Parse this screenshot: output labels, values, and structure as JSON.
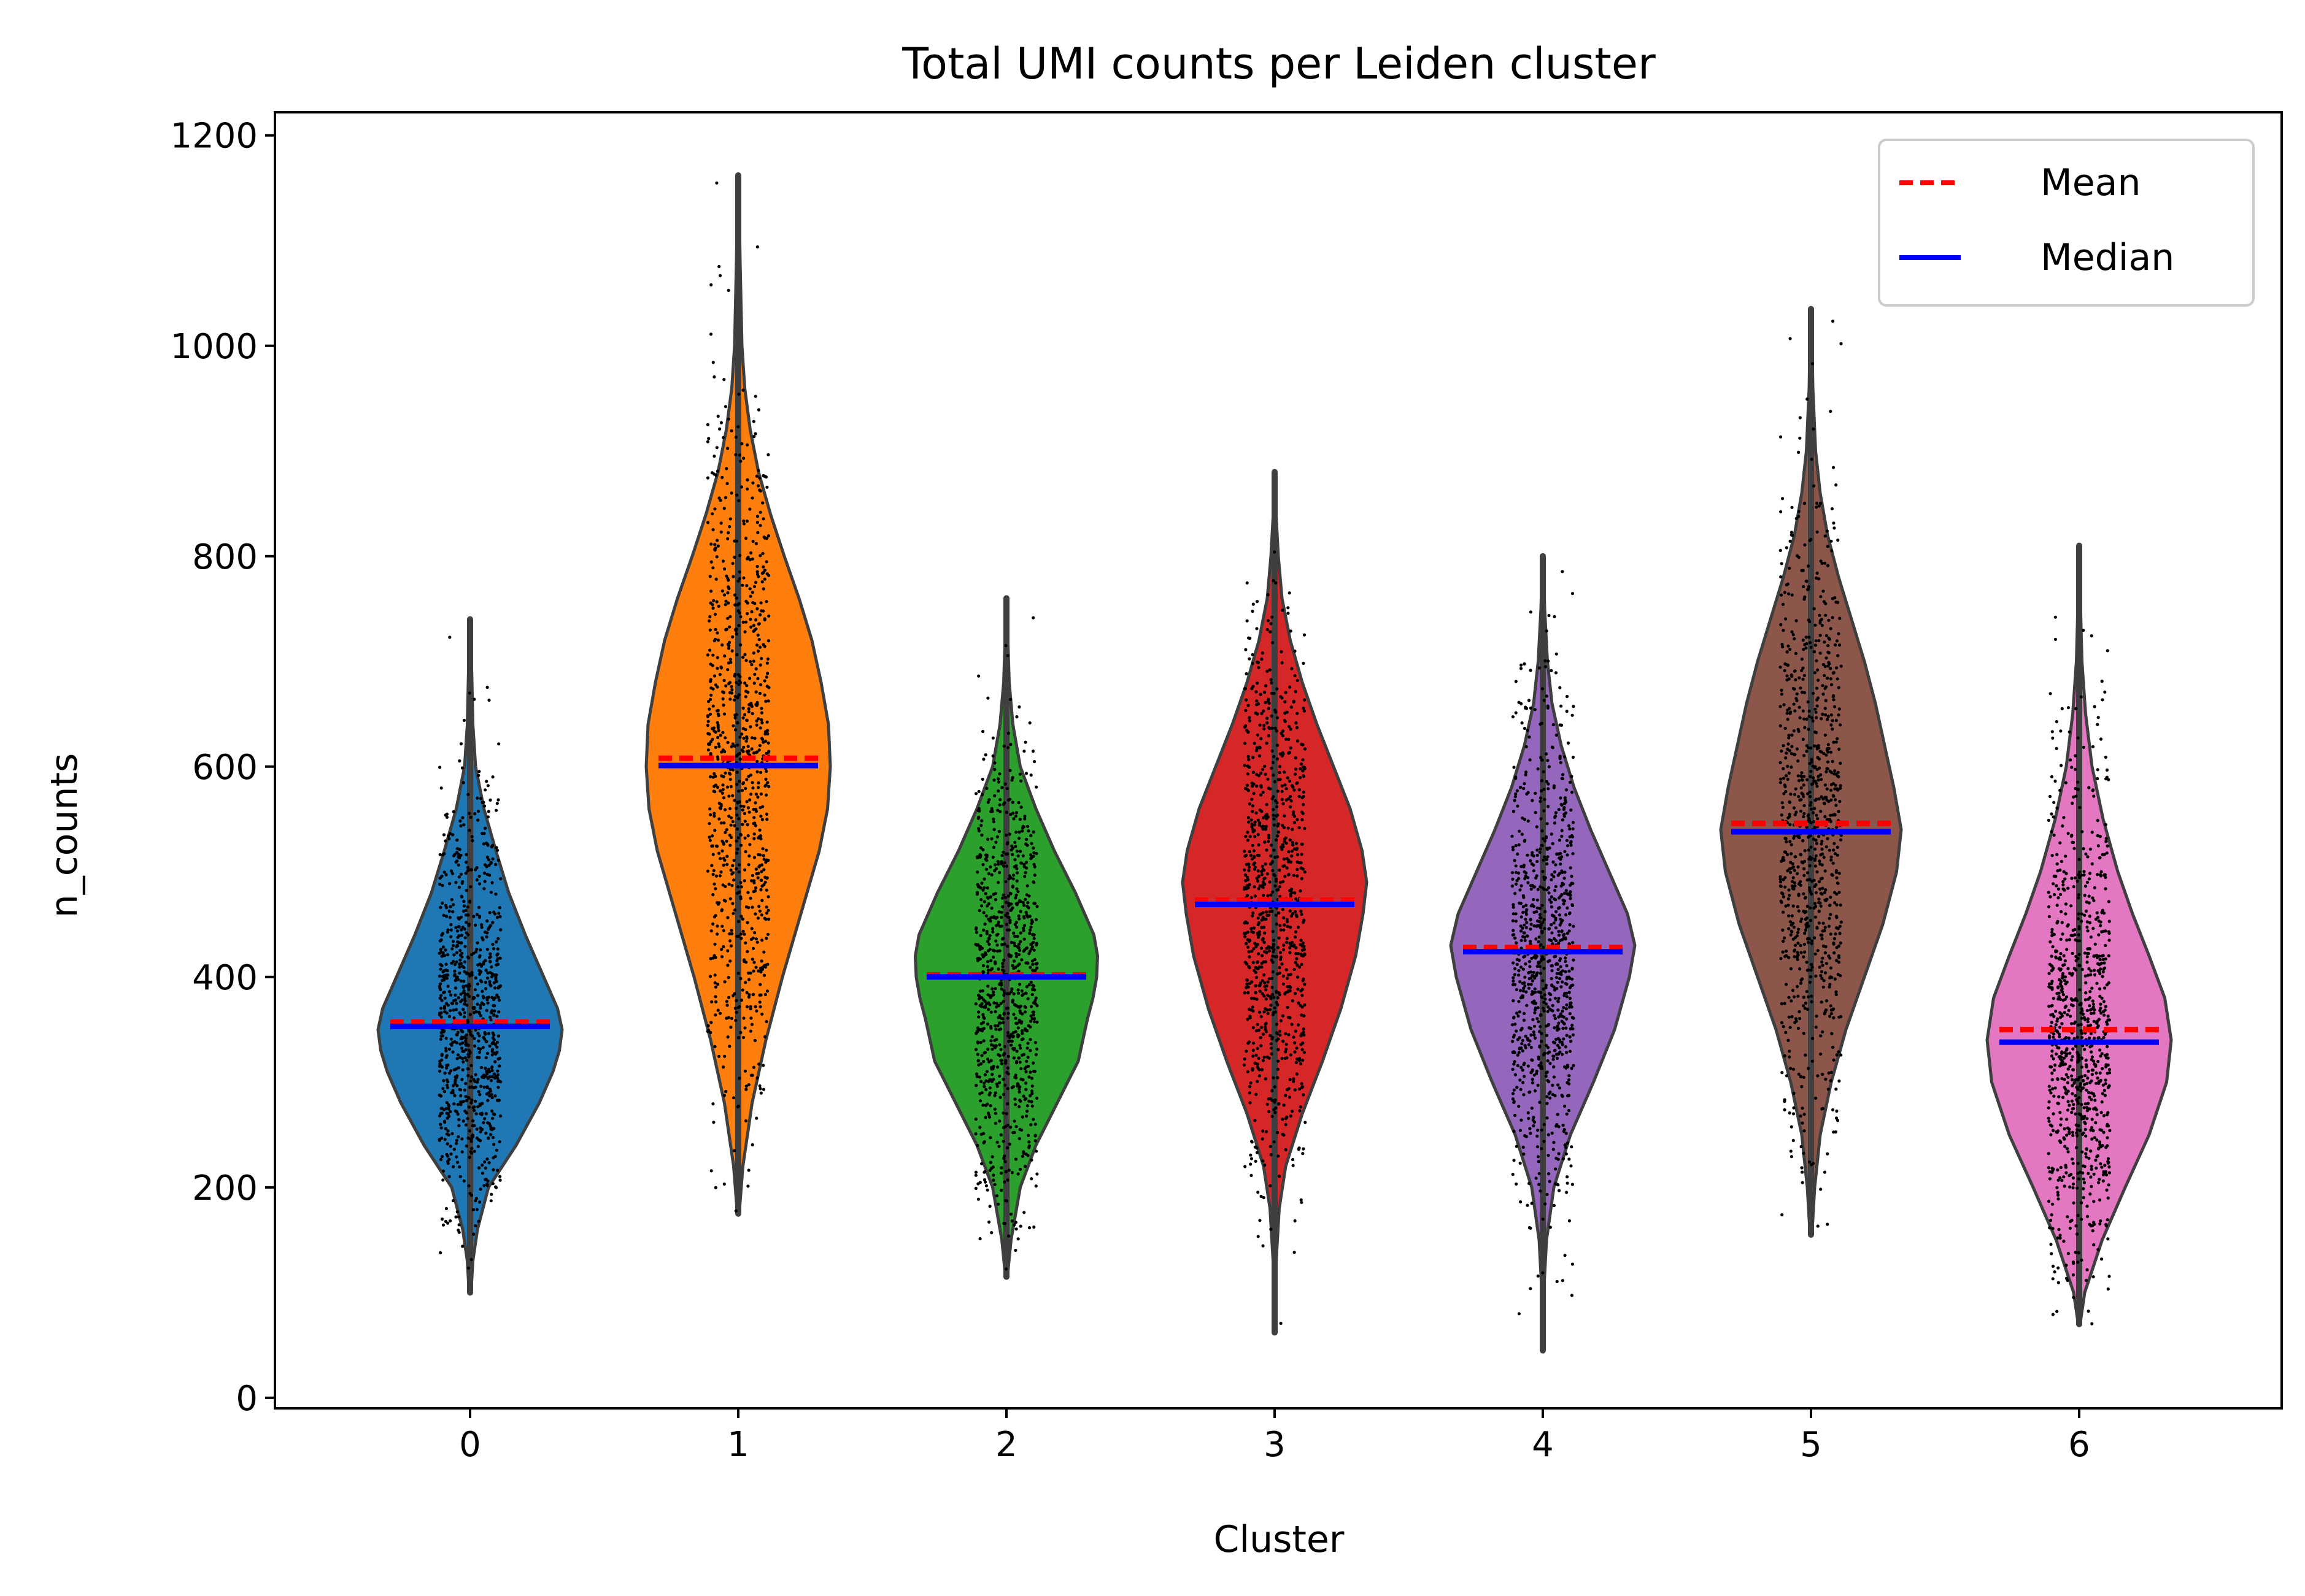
{
  "chart_data": {
    "type": "violin",
    "title": "Total UMI counts per Leiden cluster",
    "xlabel": "Cluster",
    "ylabel": "n_counts",
    "categories": [
      "0",
      "1",
      "2",
      "3",
      "4",
      "5",
      "6"
    ],
    "yticks": [
      "0",
      "200",
      "400",
      "600",
      "800",
      "1000",
      "1200"
    ],
    "ylim": [
      -10,
      1222
    ],
    "colors": [
      "#1f77b4",
      "#ff7f0e",
      "#2ca02c",
      "#d62728",
      "#9467bd",
      "#8c564b",
      "#e377c2"
    ],
    "mean_color": "#ff0000",
    "median_color": "#0000ff",
    "legend": {
      "position": "top-right",
      "mean_label": "Mean",
      "median_label": "Median"
    },
    "grid": false,
    "violins": [
      {
        "cluster": "0",
        "min": 100,
        "max": 740,
        "mean": 357,
        "median": 353,
        "profile": [
          [
            100,
            0.01
          ],
          [
            130,
            0.03
          ],
          [
            160,
            0.08
          ],
          [
            200,
            0.2
          ],
          [
            240,
            0.5
          ],
          [
            280,
            0.75
          ],
          [
            310,
            0.9
          ],
          [
            330,
            0.97
          ],
          [
            350,
            1.0
          ],
          [
            370,
            0.95
          ],
          [
            400,
            0.8
          ],
          [
            440,
            0.6
          ],
          [
            480,
            0.42
          ],
          [
            520,
            0.28
          ],
          [
            560,
            0.15
          ],
          [
            600,
            0.06
          ],
          [
            640,
            0.03
          ],
          [
            700,
            0.015
          ],
          [
            740,
            0.005
          ]
        ]
      },
      {
        "cluster": "1",
        "min": 175,
        "max": 1162,
        "mean": 608,
        "median": 601,
        "profile": [
          [
            175,
            0.01
          ],
          [
            220,
            0.05
          ],
          [
            280,
            0.15
          ],
          [
            340,
            0.3
          ],
          [
            400,
            0.48
          ],
          [
            460,
            0.68
          ],
          [
            520,
            0.88
          ],
          [
            560,
            0.97
          ],
          [
            600,
            1.0
          ],
          [
            640,
            0.98
          ],
          [
            680,
            0.9
          ],
          [
            720,
            0.8
          ],
          [
            760,
            0.66
          ],
          [
            800,
            0.5
          ],
          [
            840,
            0.35
          ],
          [
            880,
            0.22
          ],
          [
            920,
            0.13
          ],
          [
            960,
            0.07
          ],
          [
            1000,
            0.04
          ],
          [
            1080,
            0.02
          ],
          [
            1162,
            0.005
          ]
        ]
      },
      {
        "cluster": "2",
        "min": 115,
        "max": 760,
        "mean": 402,
        "median": 400,
        "profile": [
          [
            115,
            0.01
          ],
          [
            150,
            0.05
          ],
          [
            200,
            0.15
          ],
          [
            240,
            0.32
          ],
          [
            280,
            0.55
          ],
          [
            320,
            0.78
          ],
          [
            360,
            0.88
          ],
          [
            380,
            0.94
          ],
          [
            400,
            0.98
          ],
          [
            420,
            0.99
          ],
          [
            440,
            0.95
          ],
          [
            480,
            0.75
          ],
          [
            520,
            0.52
          ],
          [
            560,
            0.32
          ],
          [
            600,
            0.15
          ],
          [
            640,
            0.07
          ],
          [
            680,
            0.03
          ],
          [
            720,
            0.015
          ],
          [
            760,
            0.005
          ]
        ]
      },
      {
        "cluster": "3",
        "min": 62,
        "max": 880,
        "mean": 473,
        "median": 469,
        "profile": [
          [
            62,
            0.005
          ],
          [
            120,
            0.01
          ],
          [
            180,
            0.05
          ],
          [
            220,
            0.12
          ],
          [
            270,
            0.3
          ],
          [
            320,
            0.52
          ],
          [
            370,
            0.72
          ],
          [
            420,
            0.88
          ],
          [
            460,
            0.96
          ],
          [
            490,
            1.0
          ],
          [
            520,
            0.95
          ],
          [
            560,
            0.82
          ],
          [
            600,
            0.64
          ],
          [
            640,
            0.46
          ],
          [
            680,
            0.3
          ],
          [
            720,
            0.17
          ],
          [
            760,
            0.08
          ],
          [
            800,
            0.04
          ],
          [
            840,
            0.015
          ],
          [
            880,
            0.005
          ]
        ]
      },
      {
        "cluster": "4",
        "min": 45,
        "max": 800,
        "mean": 428,
        "median": 424,
        "profile": [
          [
            45,
            0.005
          ],
          [
            100,
            0.01
          ],
          [
            150,
            0.04
          ],
          [
            200,
            0.12
          ],
          [
            250,
            0.3
          ],
          [
            300,
            0.55
          ],
          [
            350,
            0.78
          ],
          [
            400,
            0.94
          ],
          [
            430,
            1.0
          ],
          [
            460,
            0.92
          ],
          [
            500,
            0.72
          ],
          [
            540,
            0.52
          ],
          [
            580,
            0.34
          ],
          [
            620,
            0.2
          ],
          [
            660,
            0.1
          ],
          [
            700,
            0.05
          ],
          [
            750,
            0.02
          ],
          [
            800,
            0.005
          ]
        ]
      },
      {
        "cluster": "5",
        "min": 155,
        "max": 1035,
        "mean": 546,
        "median": 538,
        "profile": [
          [
            155,
            0.01
          ],
          [
            200,
            0.04
          ],
          [
            250,
            0.1
          ],
          [
            300,
            0.22
          ],
          [
            350,
            0.38
          ],
          [
            400,
            0.58
          ],
          [
            450,
            0.78
          ],
          [
            500,
            0.93
          ],
          [
            540,
            0.98
          ],
          [
            580,
            0.9
          ],
          [
            620,
            0.8
          ],
          [
            660,
            0.7
          ],
          [
            700,
            0.58
          ],
          [
            740,
            0.44
          ],
          [
            780,
            0.3
          ],
          [
            820,
            0.18
          ],
          [
            860,
            0.1
          ],
          [
            900,
            0.05
          ],
          [
            960,
            0.02
          ],
          [
            1035,
            0.005
          ]
        ]
      },
      {
        "cluster": "6",
        "min": 70,
        "max": 810,
        "mean": 350,
        "median": 338,
        "profile": [
          [
            70,
            0.01
          ],
          [
            100,
            0.06
          ],
          [
            150,
            0.25
          ],
          [
            200,
            0.5
          ],
          [
            250,
            0.76
          ],
          [
            300,
            0.95
          ],
          [
            340,
            1.0
          ],
          [
            380,
            0.93
          ],
          [
            420,
            0.76
          ],
          [
            460,
            0.58
          ],
          [
            500,
            0.42
          ],
          [
            550,
            0.26
          ],
          [
            600,
            0.14
          ],
          [
            650,
            0.07
          ],
          [
            700,
            0.03
          ],
          [
            750,
            0.015
          ],
          [
            810,
            0.005
          ]
        ]
      }
    ]
  }
}
